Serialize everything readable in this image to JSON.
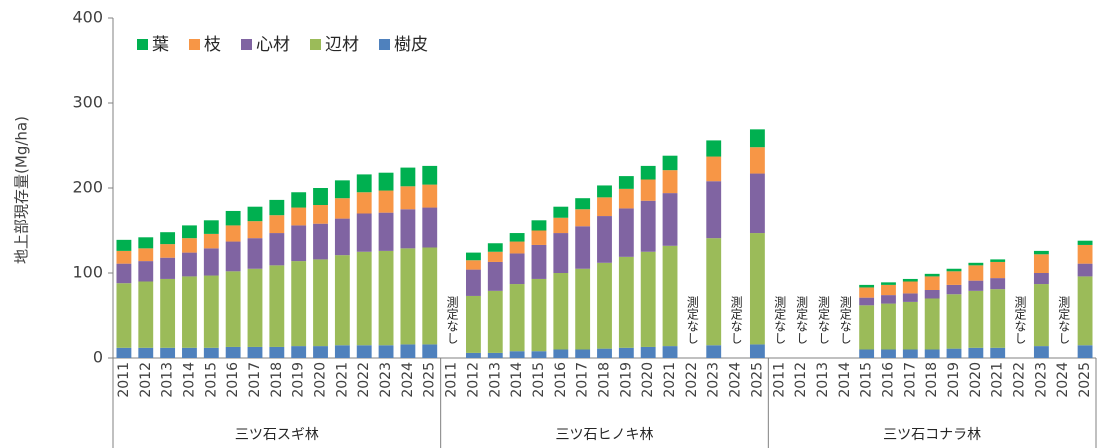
{
  "chart_data": {
    "type": "stacked_bar",
    "y_label": "地上部現存量(Mg/ha)",
    "ylim": [
      0,
      400
    ],
    "yticks": [
      0,
      100,
      200,
      300,
      400
    ],
    "no_data_label": "測定なし",
    "groups": [
      {
        "name": "三ツ石スギ林",
        "size": 15
      },
      {
        "name": "三ツ石ヒノキ林",
        "size": 15
      },
      {
        "name": "三ツ石コナラ林",
        "size": 15
      }
    ],
    "categories": [
      "2011",
      "2012",
      "2013",
      "2014",
      "2015",
      "2016",
      "2017",
      "2018",
      "2019",
      "2020",
      "2021",
      "2022",
      "2023",
      "2024",
      "2025",
      "2011",
      "2012",
      "2013",
      "2014",
      "2015",
      "2016",
      "2017",
      "2018",
      "2019",
      "2020",
      "2021",
      "2022",
      "2023",
      "2024",
      "2025",
      "2011",
      "2012",
      "2013",
      "2014",
      "2015",
      "2016",
      "2017",
      "2018",
      "2019",
      "2020",
      "2021",
      "2022",
      "2023",
      "2024",
      "2025"
    ],
    "series": [
      {
        "name": "樹皮",
        "color": "#4f81bd",
        "values": [
          12,
          12,
          12,
          12,
          12,
          13,
          13,
          13,
          14,
          14,
          15,
          15,
          15,
          16,
          16,
          null,
          6,
          6,
          8,
          8,
          10,
          10,
          11,
          12,
          13,
          14,
          null,
          15,
          null,
          16,
          null,
          null,
          null,
          null,
          10,
          10,
          10,
          10,
          11,
          12,
          12,
          null,
          14,
          null,
          15
        ]
      },
      {
        "name": "辺材",
        "color": "#9bbb59",
        "values": [
          76,
          78,
          81,
          84,
          85,
          89,
          92,
          96,
          100,
          102,
          106,
          110,
          111,
          113,
          114,
          null,
          67,
          73,
          79,
          85,
          90,
          95,
          101,
          107,
          112,
          118,
          null,
          126,
          null,
          131,
          null,
          null,
          null,
          null,
          52,
          54,
          56,
          60,
          64,
          67,
          69,
          null,
          73,
          null,
          81
        ]
      },
      {
        "name": "心材",
        "color": "#8064a2",
        "values": [
          23,
          24,
          25,
          28,
          32,
          35,
          36,
          38,
          42,
          42,
          43,
          45,
          45,
          46,
          47,
          null,
          31,
          34,
          36,
          40,
          47,
          50,
          55,
          57,
          60,
          62,
          null,
          67,
          null,
          70,
          null,
          null,
          null,
          null,
          9,
          10,
          10,
          10,
          11,
          12,
          13,
          null,
          13,
          null,
          15
        ]
      },
      {
        "name": "枝",
        "color": "#f79646",
        "values": [
          15,
          15,
          16,
          17,
          17,
          19,
          20,
          21,
          21,
          22,
          24,
          25,
          26,
          27,
          27,
          null,
          11,
          12,
          14,
          17,
          18,
          20,
          22,
          23,
          25,
          27,
          null,
          29,
          null,
          31,
          null,
          null,
          null,
          null,
          12,
          12,
          14,
          16,
          16,
          18,
          19,
          null,
          22,
          null,
          22
        ]
      },
      {
        "name": "葉",
        "color": "#00b050",
        "values": [
          13,
          13,
          14,
          15,
          16,
          17,
          17,
          18,
          18,
          20,
          21,
          21,
          21,
          22,
          22,
          null,
          9,
          10,
          10,
          12,
          13,
          13,
          14,
          15,
          16,
          17,
          null,
          19,
          null,
          21,
          null,
          null,
          null,
          null,
          3,
          3,
          3,
          3,
          3,
          3,
          3,
          null,
          4,
          null,
          5
        ]
      }
    ]
  }
}
